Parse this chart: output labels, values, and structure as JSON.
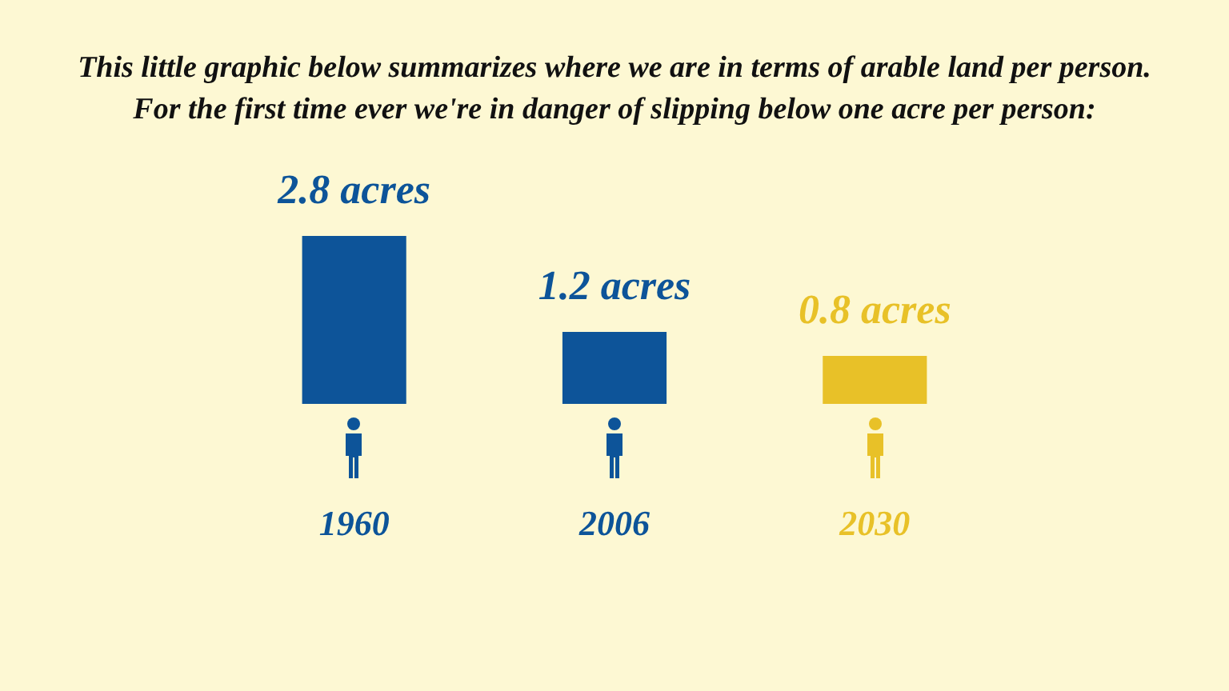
{
  "chart_data": {
    "type": "bar",
    "title": "This little graphic below summarizes where we are in terms of arable land per person.",
    "subtitle": "For the first time ever we're in danger of slipping below one acre per person:",
    "categories": [
      "1960",
      "2006",
      "2030"
    ],
    "values": [
      2.8,
      1.2,
      0.8
    ],
    "colors": [
      "#0d5499",
      "#0d5499",
      "#e8c128"
    ],
    "value_labels": [
      "2.8 acres",
      "1.2 acres",
      "0.8 acres"
    ],
    "tick_labels": "x"
  }
}
